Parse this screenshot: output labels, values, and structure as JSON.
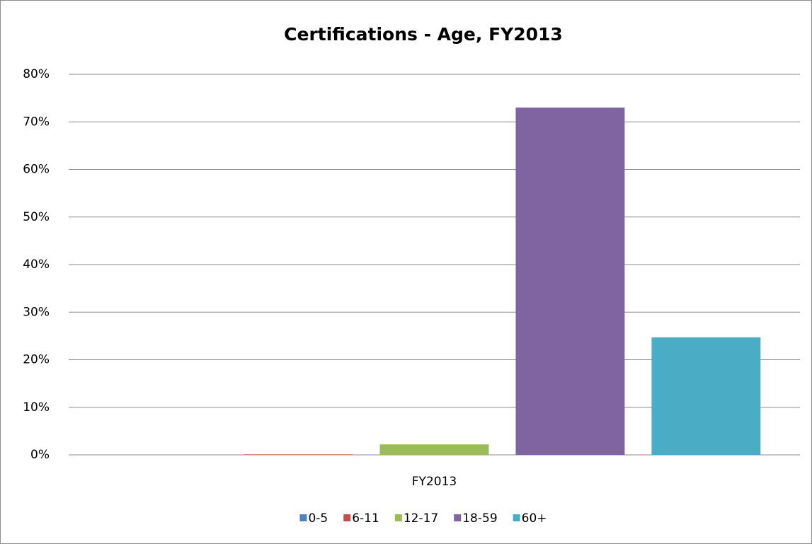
{
  "chart_data": {
    "type": "bar",
    "title": "Certifications - Age, FY2013",
    "categories": [
      "FY2013"
    ],
    "series": [
      {
        "name": "0-5",
        "color": "#4f81bd",
        "values": [
          0
        ]
      },
      {
        "name": "6-11",
        "color": "#c0504d",
        "values": [
          0.1
        ]
      },
      {
        "name": "12-17",
        "color": "#9bbb59",
        "values": [
          2.2
        ]
      },
      {
        "name": "18-59",
        "color": "#8064a2",
        "values": [
          73
        ]
      },
      {
        "name": "60+",
        "color": "#4bacc6",
        "values": [
          24.7
        ]
      }
    ],
    "ylim": [
      0,
      80
    ],
    "yticks": [
      {
        "value": 0,
        "label": "0%"
      },
      {
        "value": 10,
        "label": "10%"
      },
      {
        "value": 20,
        "label": "20%"
      },
      {
        "value": 30,
        "label": "30%"
      },
      {
        "value": 40,
        "label": "40%"
      },
      {
        "value": 50,
        "label": "50%"
      },
      {
        "value": 60,
        "label": "60%"
      },
      {
        "value": 70,
        "label": "70%"
      },
      {
        "value": 80,
        "label": "80%"
      }
    ],
    "grid": true,
    "legend": "bottom"
  }
}
